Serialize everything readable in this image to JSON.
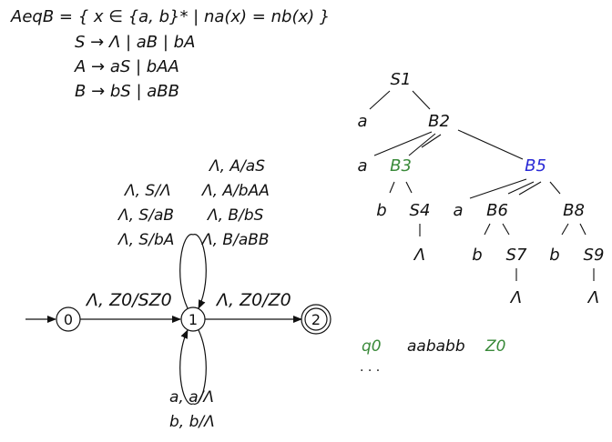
{
  "definition": "AeqB = { x ∈ {a, b}* | na(x) = nb(x) }",
  "grammar": [
    "S → Λ | aB | bA",
    "A → aS | bAA",
    "B → bS | aBB"
  ],
  "pda": {
    "states": [
      "0",
      "1",
      "2"
    ],
    "edge_0_1": "Λ, Z0/SZ0",
    "edge_1_2": "Λ, Z0/Z0",
    "loop_top_rules": [
      "Λ, A/aS",
      "Λ, S/Λ",
      "Λ, A/bAA",
      "Λ, S/aB",
      "Λ, B/bS",
      "Λ, S/bA",
      "Λ, B/aBB"
    ],
    "loop_bottom_rules": [
      "a, a/Λ",
      "b, b/Λ"
    ]
  },
  "tree": {
    "nodes": [
      "S1",
      "a",
      "B2",
      "a",
      "B3",
      "B5",
      "b",
      "S4",
      "a",
      "B6",
      "B8",
      "Λ",
      "b",
      "S7",
      "b",
      "S9",
      "Λ",
      "Λ"
    ]
  },
  "trace": {
    "state": "q0",
    "input": "aababb",
    "stack": "Z0",
    "ellipsis": "· · ·"
  },
  "colors": {
    "green": "#3a8a3a",
    "blue": "#2a2ad6",
    "ink": "#111111"
  }
}
